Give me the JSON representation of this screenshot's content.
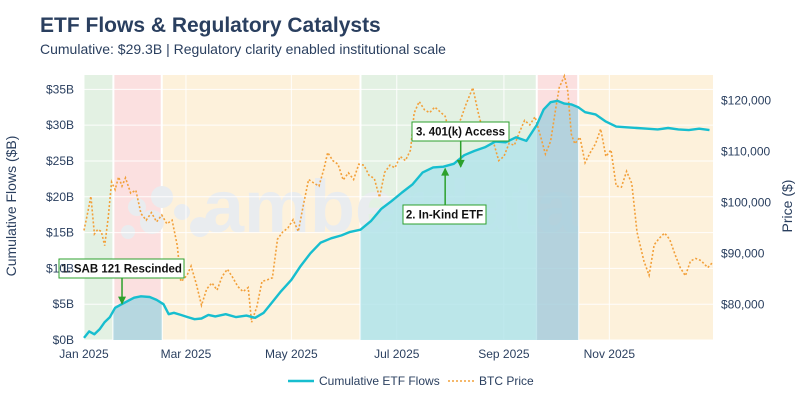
{
  "header": {
    "title": "ETF Flows & Regulatory Catalysts",
    "subtitle": "Cumulative: $29.3B | Regulatory clarity enabled institutional scale"
  },
  "watermark": "amberdata",
  "chart_data": {
    "type": "line",
    "xlim": [
      "2025-01-01",
      "2025-12-31"
    ],
    "x_ticks": [
      "Jan 2025",
      "Mar 2025",
      "May 2025",
      "Jul 2025",
      "Sep 2025",
      "Nov 2025"
    ],
    "x_tick_dates": [
      "2025-01-01",
      "2025-03-01",
      "2025-05-01",
      "2025-07-01",
      "2025-09-01",
      "2025-11-01"
    ],
    "y_left": {
      "label": "Cumulative Flows ($B)",
      "ylim": [
        0,
        37
      ],
      "ticks": [
        "$0B",
        "$5B",
        "$10B",
        "$15B",
        "$20B",
        "$25B",
        "$30B",
        "$35B"
      ],
      "tick_values": [
        0,
        5,
        10,
        15,
        20,
        25,
        30,
        35
      ]
    },
    "y_right": {
      "label": "Price ($)",
      "ylim": [
        73000,
        125000
      ],
      "ticks": [
        "$80,000",
        "$90,000",
        "$100,000",
        "$110,000",
        "$120,000"
      ],
      "tick_values": [
        80000,
        90000,
        100000,
        110000,
        120000
      ]
    },
    "regimes": [
      {
        "start": "2025-01-01",
        "end": "2025-01-18",
        "color": "#e3f1e3"
      },
      {
        "start": "2025-01-18",
        "end": "2025-02-15",
        "color": "#fbe0e0"
      },
      {
        "start": "2025-02-15",
        "end": "2025-06-10",
        "color": "#fdf1db"
      },
      {
        "start": "2025-06-10",
        "end": "2025-09-20",
        "color": "#e3f1e3"
      },
      {
        "start": "2025-09-20",
        "end": "2025-10-14",
        "color": "#fbe0e0"
      },
      {
        "start": "2025-10-14",
        "end": "2025-12-31",
        "color": "#fdf1db"
      }
    ],
    "fills": [
      {
        "start": "2025-01-18",
        "end": "2025-02-15",
        "color": "#a9d5df"
      },
      {
        "start": "2025-06-10",
        "end": "2025-09-20",
        "color": "#b4e4ea"
      },
      {
        "start": "2025-09-20",
        "end": "2025-10-14",
        "color": "#a7cfdc"
      }
    ],
    "series": [
      {
        "name": "Cumulative ETF Flows",
        "color": "#17becf",
        "style": "solid",
        "axis": "left",
        "x": [
          "2025-01-01",
          "2025-01-04",
          "2025-01-07",
          "2025-01-10",
          "2025-01-13",
          "2025-01-16",
          "2025-01-19",
          "2025-01-22",
          "2025-01-26",
          "2025-01-30",
          "2025-02-03",
          "2025-02-08",
          "2025-02-12",
          "2025-02-16",
          "2025-02-19",
          "2025-02-22",
          "2025-02-26",
          "2025-03-02",
          "2025-03-06",
          "2025-03-10",
          "2025-03-14",
          "2025-03-18",
          "2025-03-24",
          "2025-03-30",
          "2025-04-05",
          "2025-04-10",
          "2025-04-15",
          "2025-04-20",
          "2025-04-25",
          "2025-05-01",
          "2025-05-06",
          "2025-05-12",
          "2025-05-18",
          "2025-05-24",
          "2025-05-30",
          "2025-06-04",
          "2025-06-10",
          "2025-06-16",
          "2025-06-22",
          "2025-06-28",
          "2025-07-04",
          "2025-07-10",
          "2025-07-16",
          "2025-07-22",
          "2025-07-28",
          "2025-08-03",
          "2025-08-09",
          "2025-08-15",
          "2025-08-21",
          "2025-08-27",
          "2025-09-02",
          "2025-09-08",
          "2025-09-14",
          "2025-09-20",
          "2025-09-24",
          "2025-09-28",
          "2025-10-02",
          "2025-10-06",
          "2025-10-10",
          "2025-10-14",
          "2025-10-18",
          "2025-10-24",
          "2025-10-30",
          "2025-11-05",
          "2025-11-11",
          "2025-11-17",
          "2025-11-23",
          "2025-11-29",
          "2025-12-05",
          "2025-12-11",
          "2025-12-17",
          "2025-12-23",
          "2025-12-29"
        ],
        "values": [
          0.3,
          1.2,
          0.8,
          1.5,
          2.5,
          3.2,
          4.5,
          4.9,
          5.4,
          5.9,
          6.1,
          6.0,
          5.6,
          5.0,
          3.6,
          3.8,
          3.5,
          3.2,
          2.9,
          3.0,
          3.5,
          3.3,
          3.6,
          3.2,
          3.4,
          3.1,
          3.8,
          5.3,
          6.8,
          8.4,
          10.2,
          12.1,
          13.6,
          14.2,
          14.6,
          15.1,
          15.4,
          16.6,
          18.3,
          19.4,
          20.6,
          21.7,
          23.4,
          24.1,
          24.2,
          24.6,
          25.8,
          26.4,
          26.9,
          27.7,
          27.6,
          28.3,
          27.8,
          30.0,
          32.2,
          33.2,
          33.4,
          33.0,
          32.9,
          32.5,
          31.8,
          31.5,
          30.5,
          29.8,
          29.7,
          29.6,
          29.5,
          29.4,
          29.6,
          29.4,
          29.3,
          29.5,
          29.3
        ]
      },
      {
        "name": "BTC Price",
        "color": "#f2a03a",
        "style": "dotted",
        "axis": "right",
        "x": [
          "2025-01-01",
          "2025-01-03",
          "2025-01-05",
          "2025-01-07",
          "2025-01-09",
          "2025-01-11",
          "2025-01-13",
          "2025-01-15",
          "2025-01-17",
          "2025-01-19",
          "2025-01-21",
          "2025-01-23",
          "2025-01-25",
          "2025-01-28",
          "2025-01-31",
          "2025-02-03",
          "2025-02-06",
          "2025-02-09",
          "2025-02-12",
          "2025-02-15",
          "2025-02-18",
          "2025-02-21",
          "2025-02-24",
          "2025-02-26",
          "2025-02-28",
          "2025-03-02",
          "2025-03-04",
          "2025-03-07",
          "2025-03-10",
          "2025-03-13",
          "2025-03-16",
          "2025-03-19",
          "2025-03-22",
          "2025-03-25",
          "2025-03-28",
          "2025-03-31",
          "2025-04-03",
          "2025-04-06",
          "2025-04-08",
          "2025-04-11",
          "2025-04-14",
          "2025-04-17",
          "2025-04-20",
          "2025-04-23",
          "2025-04-26",
          "2025-04-29",
          "2025-05-02",
          "2025-05-05",
          "2025-05-08",
          "2025-05-11",
          "2025-05-14",
          "2025-05-17",
          "2025-05-20",
          "2025-05-22",
          "2025-05-25",
          "2025-05-28",
          "2025-05-31",
          "2025-06-03",
          "2025-06-06",
          "2025-06-09",
          "2025-06-12",
          "2025-06-15",
          "2025-06-18",
          "2025-06-21",
          "2025-06-24",
          "2025-06-27",
          "2025-06-30",
          "2025-07-03",
          "2025-07-06",
          "2025-07-09",
          "2025-07-11",
          "2025-07-14",
          "2025-07-17",
          "2025-07-20",
          "2025-07-23",
          "2025-07-26",
          "2025-07-29",
          "2025-08-01",
          "2025-08-04",
          "2025-08-07",
          "2025-08-10",
          "2025-08-14",
          "2025-08-17",
          "2025-08-20",
          "2025-08-23",
          "2025-08-26",
          "2025-08-29",
          "2025-09-01",
          "2025-09-04",
          "2025-09-07",
          "2025-09-10",
          "2025-09-13",
          "2025-09-16",
          "2025-09-19",
          "2025-09-22",
          "2025-09-25",
          "2025-09-28",
          "2025-10-01",
          "2025-10-03",
          "2025-10-06",
          "2025-10-08",
          "2025-10-10",
          "2025-10-12",
          "2025-10-15",
          "2025-10-18",
          "2025-10-21",
          "2025-10-24",
          "2025-10-27",
          "2025-10-30",
          "2025-11-02",
          "2025-11-05",
          "2025-11-08",
          "2025-11-11",
          "2025-11-14",
          "2025-11-17",
          "2025-11-21",
          "2025-11-24",
          "2025-11-27",
          "2025-11-30",
          "2025-12-03",
          "2025-12-06",
          "2025-12-09",
          "2025-12-12",
          "2025-12-15",
          "2025-12-18",
          "2025-12-21",
          "2025-12-24",
          "2025-12-28",
          "2025-12-31"
        ],
        "values": [
          94500,
          97800,
          101200,
          93800,
          94700,
          94300,
          91500,
          97000,
          104000,
          102500,
          105000,
          103200,
          104800,
          101800,
          102400,
          97800,
          96500,
          98000,
          96200,
          97500,
          95800,
          96500,
          91500,
          84500,
          85000,
          86000,
          87500,
          84000,
          79800,
          83000,
          84200,
          82800,
          85500,
          86900,
          85300,
          83500,
          82500,
          83300,
          76500,
          79500,
          84500,
          84800,
          85200,
          92800,
          94200,
          95000,
          96600,
          94300,
          99600,
          104500,
          103800,
          103200,
          106800,
          109800,
          108200,
          107500,
          104400,
          105800,
          104500,
          107500,
          107300,
          105300,
          104700,
          101000,
          105900,
          107300,
          106800,
          109000,
          108200,
          110300,
          117500,
          119800,
          118200,
          117600,
          118700,
          117800,
          116900,
          113000,
          114400,
          116300,
          119200,
          122500,
          117800,
          113800,
          115400,
          111800,
          108200,
          109000,
          111600,
          111200,
          113800,
          116100,
          115200,
          116800,
          113200,
          109500,
          112000,
          118500,
          122500,
          124800,
          121800,
          113400,
          111500,
          112800,
          107800,
          109800,
          111500,
          114400,
          109000,
          110300,
          103200,
          103000,
          106100,
          103700,
          94200,
          88500,
          85700,
          91700,
          93000,
          94000,
          92700,
          89800,
          87200,
          85600,
          88500,
          89000,
          88600,
          87200,
          88300
        ]
      }
    ],
    "annotations": [
      {
        "text": "1. SAB 121 Rescinded",
        "date": "2025-01-23",
        "value": 4.8
      },
      {
        "text": "2. In-Kind ETF",
        "date": "2025-07-29",
        "value": 24.2
      },
      {
        "text": "3. 401(k) Access",
        "date": "2025-08-07",
        "value": 23.9
      }
    ],
    "legend": {
      "placement": "bottom-center",
      "items": [
        "Cumulative ETF Flows",
        "BTC Price"
      ]
    }
  }
}
